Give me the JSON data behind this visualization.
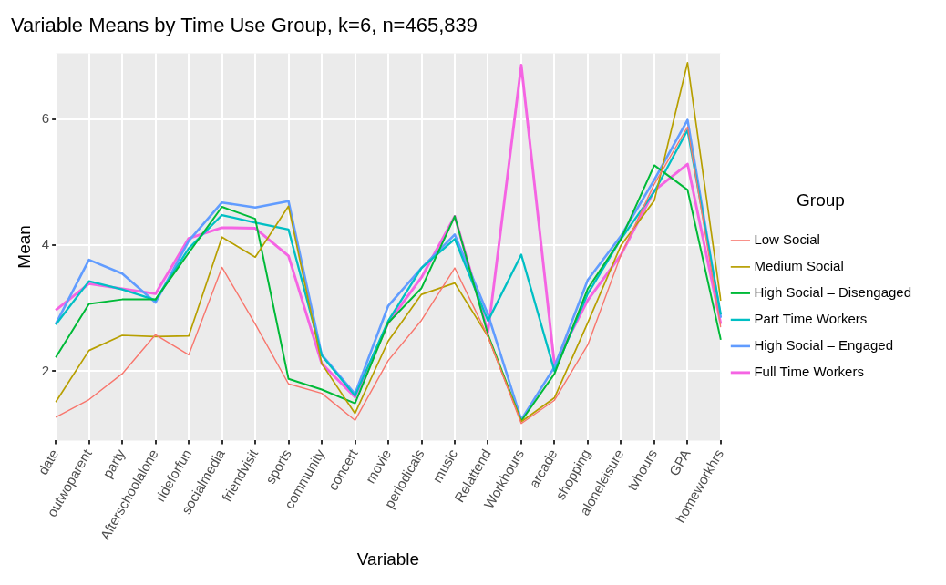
{
  "chart_data": {
    "type": "line",
    "title": "Variable Means by Time Use Group, k=6, n=465,839",
    "xlabel": "Variable",
    "ylabel": "Mean",
    "legend_title": "Group",
    "legend": "right",
    "grid": true,
    "marker": "none",
    "line_style": "solid",
    "categories": [
      "date",
      "outwoparent",
      "party",
      "Afterschoolalone",
      "rideforfun",
      "socialmedia",
      "friendvisit",
      "sports",
      "community",
      "concert",
      "movie",
      "periodicals",
      "music",
      "Relattend",
      "Workhours",
      "arcade",
      "shopping",
      "aloneleisure",
      "tvhours",
      "GPA",
      "homeworkhrs"
    ],
    "ylim": [
      0.9,
      7.05
    ],
    "yticks": [
      2,
      4,
      6
    ],
    "series": [
      {
        "name": "Low Social",
        "color": "#f8766d",
        "values": [
          1.27,
          1.55,
          1.96,
          2.58,
          2.26,
          3.65,
          2.75,
          1.8,
          1.65,
          1.22,
          2.17,
          2.81,
          3.64,
          2.55,
          1.17,
          1.54,
          2.42,
          3.85,
          4.97,
          5.88,
          2.7
        ]
      },
      {
        "name": "Medium Social",
        "color": "#b79f00",
        "values": [
          1.51,
          2.33,
          2.57,
          2.55,
          2.56,
          4.13,
          3.81,
          4.62,
          2.12,
          1.33,
          2.48,
          3.22,
          3.4,
          2.55,
          1.2,
          1.58,
          2.77,
          4.0,
          4.71,
          6.9,
          3.12
        ]
      },
      {
        "name": "High Social – Disengaged",
        "color": "#00ba38",
        "values": [
          2.22,
          3.07,
          3.14,
          3.14,
          3.88,
          4.61,
          4.42,
          1.88,
          1.71,
          1.49,
          2.77,
          3.32,
          4.46,
          2.58,
          1.21,
          1.96,
          3.31,
          4.1,
          5.27,
          4.88,
          2.5
        ]
      },
      {
        "name": "Part Time Workers",
        "color": "#00bfc4",
        "values": [
          2.74,
          3.43,
          3.3,
          3.13,
          3.95,
          4.48,
          4.36,
          4.25,
          2.25,
          1.61,
          2.8,
          3.64,
          4.1,
          2.8,
          3.85,
          2.0,
          3.23,
          4.1,
          4.85,
          5.83,
          2.9
        ]
      },
      {
        "name": "High Social – Engaged",
        "color": "#619cff",
        "values": [
          2.75,
          3.77,
          3.55,
          3.09,
          4.07,
          4.68,
          4.6,
          4.7,
          2.26,
          1.64,
          3.04,
          3.64,
          4.17,
          2.9,
          1.23,
          2.07,
          3.45,
          4.15,
          5.04,
          5.99,
          2.85
        ]
      },
      {
        "name": "Full Time Workers",
        "color": "#f564e3",
        "values": [
          2.97,
          3.39,
          3.31,
          3.23,
          4.11,
          4.28,
          4.27,
          3.83,
          2.12,
          1.59,
          2.77,
          3.49,
          4.46,
          2.62,
          6.86,
          2.1,
          3.13,
          3.85,
          4.87,
          5.29,
          2.75
        ]
      }
    ]
  }
}
